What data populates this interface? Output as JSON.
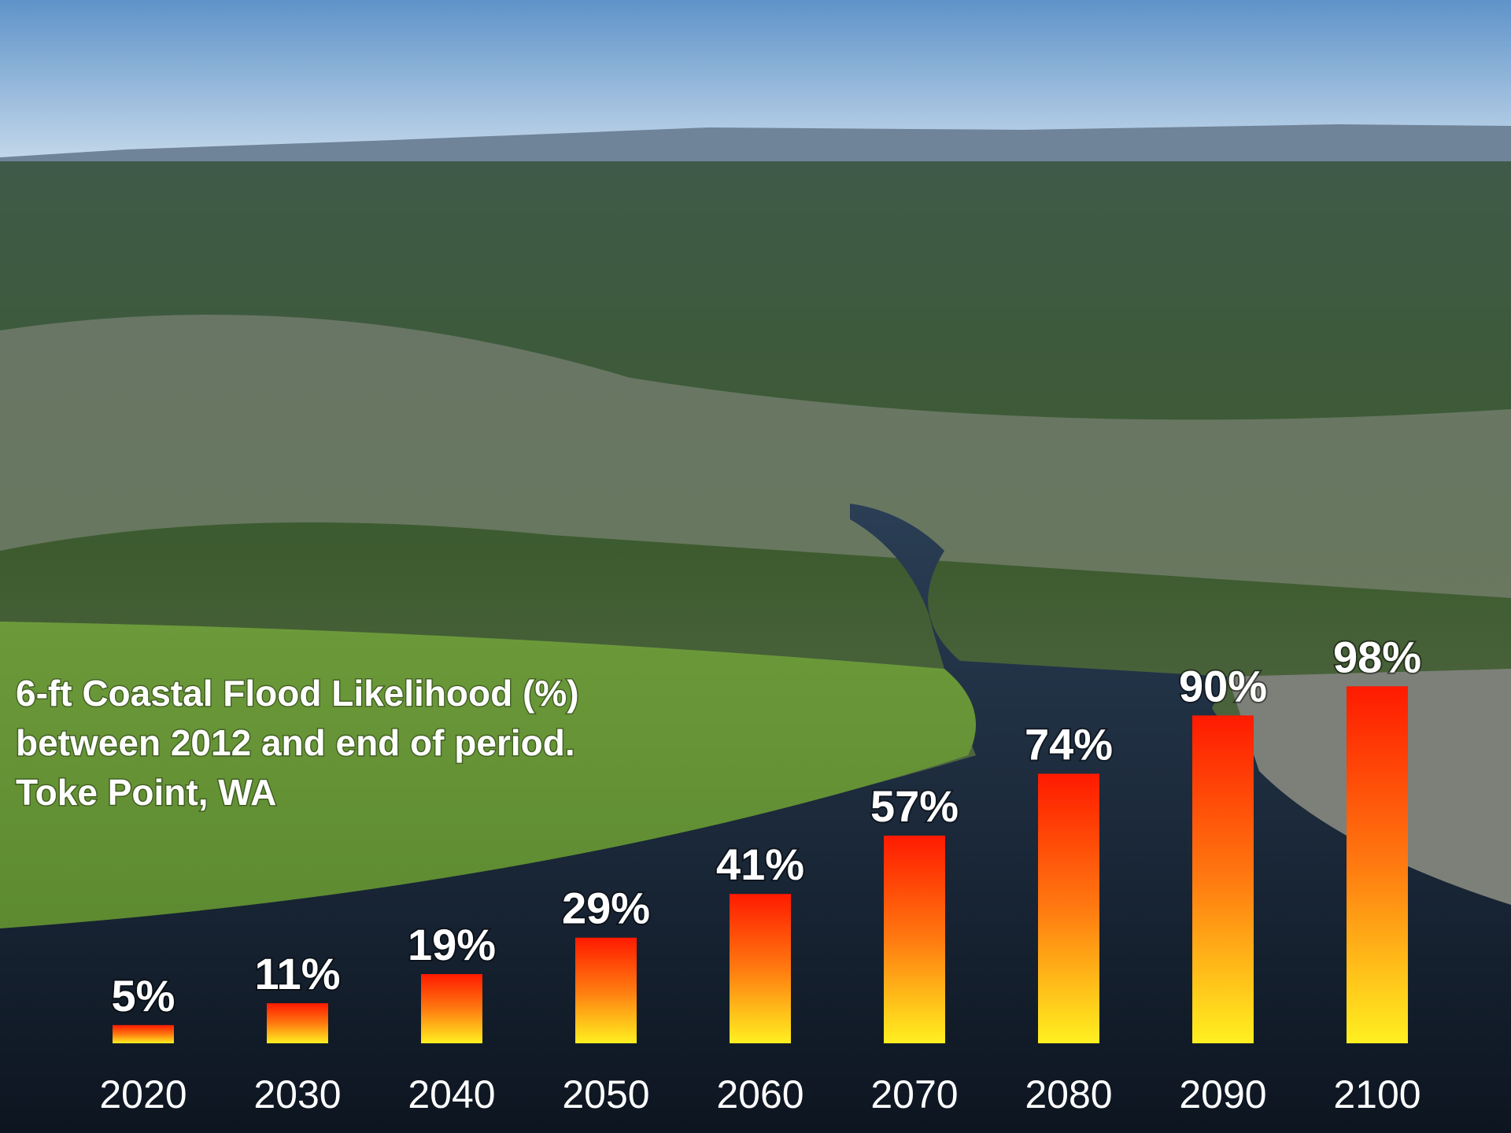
{
  "chart_data": {
    "type": "bar",
    "title_lines": [
      "6-ft Coastal Flood Likelihood (%)",
      "between 2012 and end of period.",
      "Toke Point, WA"
    ],
    "categories": [
      "2020",
      "2030",
      "2040",
      "2050",
      "2060",
      "2070",
      "2080",
      "2090",
      "2100"
    ],
    "values": [
      5,
      11,
      19,
      29,
      41,
      57,
      74,
      90,
      98
    ],
    "value_labels": [
      "5%",
      "11%",
      "19%",
      "29%",
      "41%",
      "57%",
      "74%",
      "90%",
      "98%"
    ],
    "ylim": [
      0,
      100
    ]
  }
}
